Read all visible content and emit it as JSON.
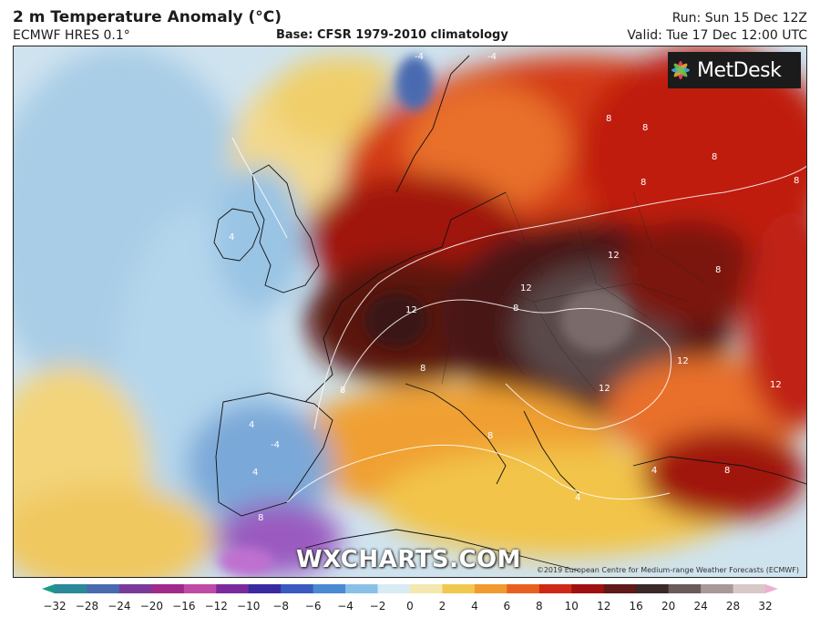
{
  "header": {
    "title": "2 m Temperature Anomaly (°C)",
    "model": "ECMWF HRES 0.1°",
    "base": "Base: CFSR 1979-2010 climatology",
    "run": "Run: Sun 15 Dec 12Z",
    "valid": "Valid: Tue 17 Dec 12:00 UTC"
  },
  "logo": {
    "text": "MetDesk"
  },
  "watermark": "WXCHARTS.COM",
  "copyright": "©2019 European Centre for Medium-range Weather Forecasts (ECMWF)",
  "contour_labels": [
    "-4",
    "-4",
    "4",
    "4",
    "-4",
    "4",
    "8",
    "8",
    "8",
    "8",
    "8",
    "8",
    "12",
    "12",
    "12",
    "12",
    "8",
    "8",
    "12",
    "8",
    "8",
    "4",
    "8",
    "4",
    "12",
    "8"
  ],
  "legend": {
    "ticks": [
      "−32",
      "−28",
      "−24",
      "−20",
      "−16",
      "−12",
      "−10",
      "−8",
      "−6",
      "−4",
      "−2",
      "0",
      "2",
      "4",
      "6",
      "8",
      "10",
      "12",
      "16",
      "20",
      "24",
      "28",
      "32"
    ],
    "colors": [
      "#1a9a8a",
      "#2a8a9a",
      "#4a6ab0",
      "#7a3a9a",
      "#a02a8a",
      "#c04aa8",
      "#7a2a9a",
      "#3a2aa0",
      "#3a5ac0",
      "#4a8ad0",
      "#8ac0e8",
      "#d8ecf4",
      "#f4e8b0",
      "#f0c850",
      "#f09a30",
      "#e86020",
      "#d02818",
      "#a01010",
      "#601818",
      "#3a2828",
      "#6a5a5a",
      "#a89898",
      "#d8c8c8",
      "#f0b0d0"
    ]
  }
}
